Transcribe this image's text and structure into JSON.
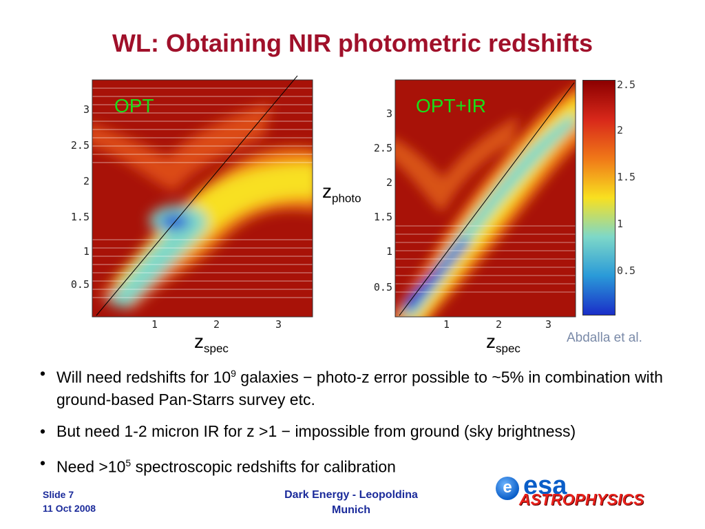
{
  "title": "WL: Obtaining NIR photometric redshifts",
  "panels": {
    "left": {
      "label": "OPT"
    },
    "right": {
      "label": "OPT+IR"
    }
  },
  "axes": {
    "z_photo": {
      "base": "z",
      "sub": "photo"
    },
    "z_spec_left": {
      "base": "z",
      "sub": "spec"
    },
    "z_spec_right": {
      "base": "z",
      "sub": "spec"
    },
    "y_ticks_left": [
      "3",
      "2.5",
      "2",
      "1.5",
      "1",
      "0.5"
    ],
    "x_ticks_left": [
      "1",
      "2",
      "3"
    ],
    "y_ticks_right": [
      "3",
      "2.5",
      "2",
      "1.5",
      "1",
      "0.5"
    ],
    "x_ticks_right": [
      "1",
      "2",
      "3"
    ]
  },
  "colorbar": {
    "ticks": [
      "2.5",
      "2",
      "1.5",
      "1",
      "0.5"
    ],
    "colors": [
      "#8b0000",
      "#d8281a",
      "#f07818",
      "#f8e020",
      "#7ed8c8",
      "#2a9ad8",
      "#1a2ec8"
    ]
  },
  "credit": "Abdalla et al.",
  "bullets": [
    {
      "pre": "Will need redshifts for 10",
      "sup": "9",
      "post": " galaxies − photo-z error possible to ~5% in combination with ground-based Pan-Starrs survey etc."
    },
    {
      "pre": "But need 1-2 micron IR for z >1 − impossible from ground (sky brightness)",
      "sup": "",
      "post": ""
    },
    {
      "pre": "Need >10",
      "sup": "5",
      "post": " spectroscopic redshifts for calibration"
    }
  ],
  "footer": {
    "slide": "Slide 7",
    "date": "11 Oct 2008",
    "center_line1": "Dark Energy - Leopoldina",
    "center_line2": "Munich"
  },
  "logo": {
    "disk_letter": "e",
    "wordmark": "esa",
    "subtitle": "ASTROPHYSICS"
  }
}
